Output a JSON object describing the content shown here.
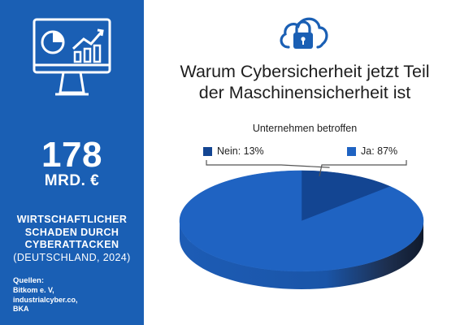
{
  "sidebar": {
    "big_number": "178",
    "unit": "MRD. €",
    "damage_lines": [
      "WIRTSCHAFTLICHER",
      "SCHADEN DURCH",
      "CYBERATTACKEN",
      "(DEUTSCHLAND, 2024)"
    ],
    "sources_title": "Quellen:",
    "sources": [
      "Bitkom e. V,",
      "industrialcyber.co,",
      "BKA"
    ]
  },
  "headline_lines": [
    "Warum Cybersicherheit jetzt Teil",
    "der Maschinensicherheit ist"
  ],
  "icons": [
    "monitor-chart-icon",
    "cloud-lock-icon"
  ],
  "colors": {
    "sidebar_bg": "#1a5fb4",
    "ja": "#1f63c2",
    "nein": "#134592"
  },
  "chart_data": {
    "type": "pie",
    "title": "Unternehmen betroffen",
    "slices": [
      {
        "label": "Nein: 13%",
        "category": "Nein",
        "value": 13,
        "color": "#134592"
      },
      {
        "label": "Ja: 87%",
        "category": "Ja",
        "value": 87,
        "color": "#1f63c2"
      }
    ],
    "style": "3d",
    "legend": "top"
  }
}
